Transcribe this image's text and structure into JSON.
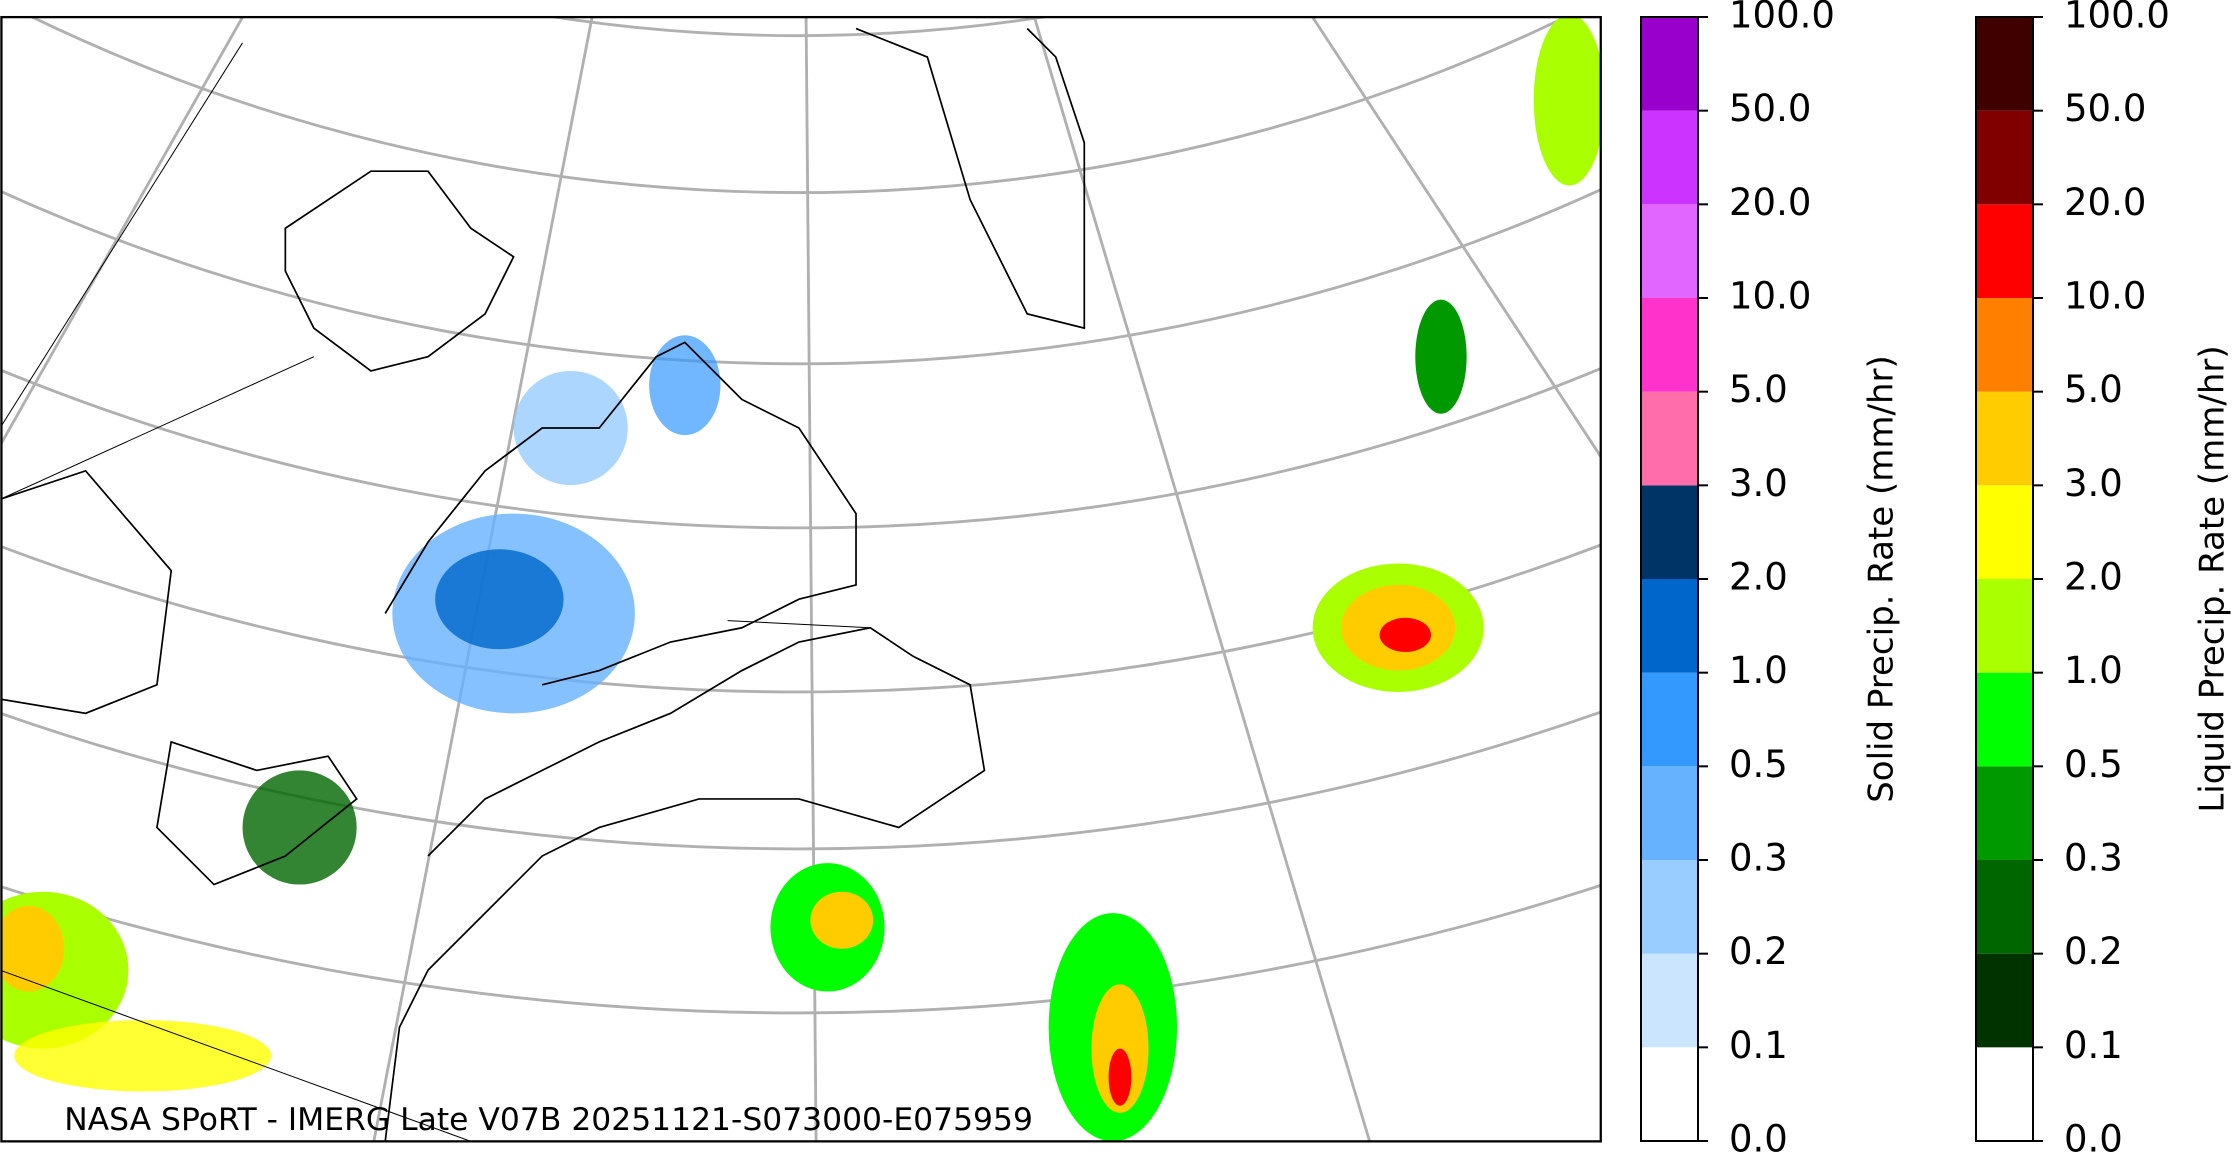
{
  "map": {
    "caption": "NASA SPoRT - IMERG Late V07B 20251121-S073000-E075959"
  },
  "colorbars": [
    {
      "label": "Solid Precip. Rate (mm/hr)",
      "ticks": [
        "0.0",
        "0.1",
        "0.2",
        "0.3",
        "0.5",
        "1.0",
        "2.0",
        "3.0",
        "5.0",
        "10.0",
        "20.0",
        "50.0",
        "100.0"
      ],
      "colors": [
        "#ffffff",
        "#cce5ff",
        "#99ccff",
        "#66b2ff",
        "#3399ff",
        "#0066cc",
        "#003366",
        "#ff6eaa",
        "#ff33cc",
        "#e066ff",
        "#cc33ff",
        "#9900cc"
      ]
    },
    {
      "label": "Liquid Precip. Rate (mm/hr)",
      "ticks": [
        "0.0",
        "0.1",
        "0.2",
        "0.3",
        "0.5",
        "1.0",
        "2.0",
        "3.0",
        "5.0",
        "10.0",
        "20.0",
        "50.0",
        "100.0"
      ],
      "colors": [
        "#ffffff",
        "#003300",
        "#006600",
        "#009900",
        "#00ff00",
        "#aaff00",
        "#ffff00",
        "#ffcc00",
        "#ff8000",
        "#ff0000",
        "#800000",
        "#400000"
      ]
    }
  ]
}
